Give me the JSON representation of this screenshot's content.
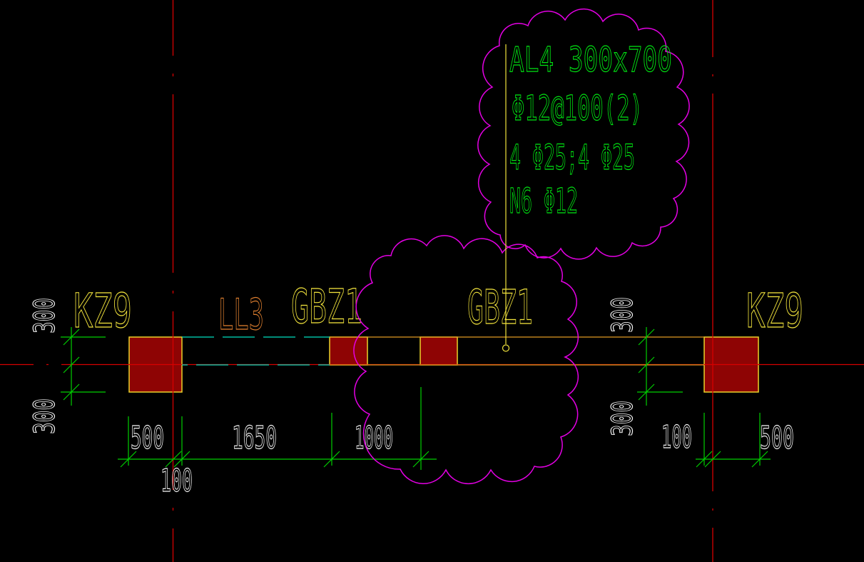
{
  "annotation": {
    "line1": "AL4  300x700",
    "line2": "Φ12@100(2)",
    "line3": "4 Φ25;4 Φ25",
    "line4": "N6 Φ12"
  },
  "labels": {
    "column_left": "KZ9",
    "link_beam": "LL3",
    "boundary_element_left": "GBZ1",
    "boundary_element_right": "GBZ1",
    "column_right": "KZ9"
  },
  "dimensions": {
    "left_upper": "300",
    "left_lower": "300",
    "right_upper": "300",
    "right_lower": "300",
    "bottom": [
      "500",
      "100",
      "1650",
      "1000"
    ],
    "bottom_right": [
      "100",
      "500"
    ]
  },
  "colors": {
    "background": "#000000",
    "grid_line": "#d60000",
    "column_fill": "#8e0404",
    "column_border": "#ecd32a",
    "beam_outline": "#e09a22",
    "hidden_beam_line": "#00e0c0",
    "dimension": "#00cf00",
    "dimension_text": "#f2f2f2",
    "annotation_text": "#00e412",
    "label_yellow": "#f0e23c",
    "label_orange": "#e08030",
    "revision_cloud": "#e400e4",
    "leader": "#f0e23c"
  }
}
